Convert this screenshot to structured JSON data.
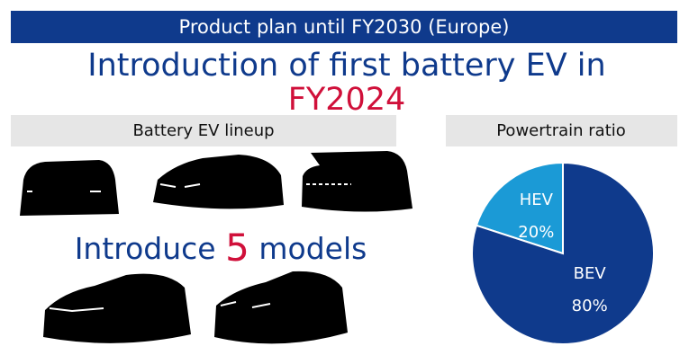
{
  "header": {
    "title": "Product plan until FY2030 (Europe)"
  },
  "headline": {
    "text": "Introduction of first battery EV in",
    "highlight": "FY2024"
  },
  "lineup": {
    "title": "Battery EV lineup",
    "prefix": "Introduce",
    "count": "5",
    "suffix": "models"
  },
  "chart_data": {
    "type": "pie",
    "title": "Powertrain ratio",
    "categories": [
      "HEV",
      "BEV"
    ],
    "values": [
      20,
      80
    ],
    "value_labels": [
      "20%",
      "80%"
    ],
    "colors": [
      "#1b9ad6",
      "#0f3a8c"
    ]
  }
}
